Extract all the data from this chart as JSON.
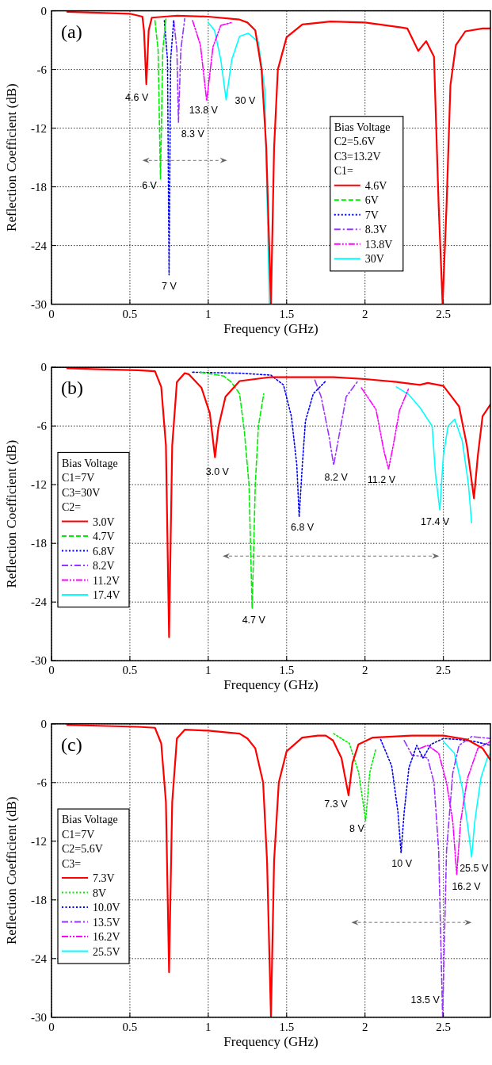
{
  "chart_data": [
    {
      "type": "line",
      "title": "(a)",
      "xlabel": "Frequency (GHz)",
      "ylabel": "Reflection Coefficient (dB)",
      "xlim": [
        0,
        2.8
      ],
      "xticks": [
        0,
        0.5,
        1,
        1.5,
        2,
        2.5
      ],
      "ylim": [
        -30,
        0
      ],
      "yticks": [
        -30,
        -24,
        -18,
        -12,
        -6,
        0
      ],
      "grid": true,
      "legend": "right",
      "legend_title": "Bias Voltage\nC2=5.6V\nC3=13.2V\nC1=",
      "series": [
        {
          "name": "4.6V",
          "color": "#ff0000",
          "line_style": "solid",
          "x": [
            0.1,
            0.3,
            0.5,
            0.58,
            0.59,
            0.605,
            0.62,
            0.64,
            0.8,
            1.0,
            1.2,
            1.25,
            1.3,
            1.34,
            1.37,
            1.4,
            1.42,
            1.444,
            1.5,
            1.6,
            1.78,
            2.0,
            2.14,
            2.27,
            2.34,
            2.39,
            2.44,
            2.47,
            2.495,
            2.52,
            2.545,
            2.58,
            2.64,
            2.75,
            2.8
          ],
          "values": [
            -0.1,
            -0.2,
            -0.3,
            -0.6,
            -2,
            -7.5,
            -2,
            -0.7,
            -0.5,
            -0.6,
            -0.9,
            -1.2,
            -2,
            -6,
            -14,
            -30,
            -14,
            -6,
            -2.7,
            -1.4,
            -1.1,
            -1.2,
            -1.5,
            -1.8,
            -4.1,
            -3.1,
            -4.7,
            -20,
            -30,
            -20,
            -7.6,
            -3.5,
            -2.1,
            -1.8,
            -1.8
          ]
        },
        {
          "name": "6V",
          "color": "#00ee00",
          "line_style": "dashed",
          "x": [
            0.66,
            0.68,
            0.695,
            0.71,
            0.73
          ],
          "values": [
            -1,
            -4,
            -17.2,
            -4,
            -0.8
          ]
        },
        {
          "name": "7V",
          "color": "#0000ff",
          "line_style": "dotted",
          "x": [
            0.72,
            0.74,
            0.75,
            0.76,
            0.78
          ],
          "values": [
            -1,
            -5,
            -27,
            -5,
            -0.9
          ]
        },
        {
          "name": "8.3V",
          "color": "#9933ff",
          "line_style": "dashdot",
          "x": [
            0.78,
            0.8,
            0.81,
            0.825,
            0.85
          ],
          "values": [
            -1,
            -4,
            -11.4,
            -4,
            -0.8
          ]
        },
        {
          "name": "13.8V",
          "color": "#ff00ff",
          "line_style": "dashdotdot",
          "x": [
            0.9,
            0.95,
            0.99,
            1.03,
            1.08,
            1.15
          ],
          "values": [
            -1,
            -3.5,
            -9.2,
            -3.7,
            -1.5,
            -1.2
          ]
        },
        {
          "name": "30V",
          "color": "#00ffff",
          "line_style": "solid",
          "x": [
            1.0,
            1.04,
            1.08,
            1.114,
            1.15,
            1.2,
            1.255,
            1.32,
            1.36,
            1.39
          ],
          "values": [
            -1.2,
            -2,
            -5,
            -9.1,
            -5,
            -2.6,
            -2.3,
            -3.2,
            -8,
            -30
          ]
        }
      ],
      "annotations": [
        {
          "text": "4.6 V",
          "x": 0.605,
          "y": -7.5
        },
        {
          "text": "6 V",
          "x": 0.695,
          "y": -17.2
        },
        {
          "text": "7 V",
          "x": 0.75,
          "y": -27
        },
        {
          "text": "8.3 V",
          "x": 0.81,
          "y": -11.4
        },
        {
          "text": "13.8 V",
          "x": 0.99,
          "y": -9.2
        },
        {
          "text": "30 V",
          "x": 1.114,
          "y": -9.1
        }
      ]
    },
    {
      "type": "line",
      "title": "(b)",
      "xlabel": "Frequency (GHz)",
      "ylabel": "Reflection Coefficient (dB)",
      "xlim": [
        0,
        2.8
      ],
      "xticks": [
        0,
        0.5,
        1,
        1.5,
        2,
        2.5
      ],
      "ylim": [
        -30,
        0
      ],
      "yticks": [
        -30,
        -24,
        -18,
        -12,
        -6,
        0
      ],
      "grid": true,
      "legend": "left",
      "legend_title": "Bias Voltage\nC1=7V\nC3=30V\nC2=",
      "series": [
        {
          "name": "3.0V",
          "color": "#ff0000",
          "line_style": "solid",
          "x": [
            0.1,
            0.3,
            0.55,
            0.66,
            0.7,
            0.73,
            0.75,
            0.77,
            0.8,
            0.85,
            0.875,
            0.957,
            1.01,
            1.043,
            1.065,
            1.11,
            1.2,
            1.4,
            1.6,
            1.8,
            2.0,
            2.2,
            2.35,
            2.4,
            2.5,
            2.6,
            2.65,
            2.695,
            2.72,
            2.75,
            2.8
          ],
          "values": [
            -0.1,
            -0.2,
            -0.3,
            -0.4,
            -2,
            -8,
            -27.6,
            -8,
            -1.5,
            -0.6,
            -0.7,
            -2.1,
            -4.7,
            -9.2,
            -6.1,
            -3,
            -1.4,
            -1.0,
            -1.0,
            -1.0,
            -1.2,
            -1.5,
            -1.8,
            -1.6,
            -1.9,
            -4,
            -8,
            -13.4,
            -9,
            -5,
            -3.8
          ]
        },
        {
          "name": "4.7V",
          "color": "#00ee00",
          "line_style": "dashed",
          "x": [
            0.95,
            1.1,
            1.146,
            1.2,
            1.23,
            1.26,
            1.28,
            1.3,
            1.32,
            1.354
          ],
          "values": [
            -0.5,
            -0.9,
            -1.5,
            -2.7,
            -6.5,
            -12,
            -24.7,
            -12,
            -6,
            -2.7
          ]
        },
        {
          "name": "6.8V",
          "color": "#0000ff",
          "line_style": "dotted",
          "x": [
            0.9,
            1.2,
            1.4,
            1.48,
            1.53,
            1.565,
            1.58,
            1.6,
            1.62,
            1.67,
            1.75
          ],
          "values": [
            -0.5,
            -0.6,
            -0.8,
            -1.8,
            -5,
            -10,
            -15.3,
            -10,
            -5.5,
            -2.7,
            -1.4
          ]
        },
        {
          "name": "8.2V",
          "color": "#9933ff",
          "line_style": "dashdot",
          "x": [
            1.68,
            1.72,
            1.77,
            1.8,
            1.84,
            1.88,
            1.95
          ],
          "values": [
            -1.3,
            -3,
            -7,
            -10,
            -6.5,
            -3,
            -1.5
          ]
        },
        {
          "name": "11.2V",
          "color": "#ff00ff",
          "line_style": "dashdotdot",
          "x": [
            1.977,
            2.07,
            2.12,
            2.15,
            2.18,
            2.22,
            2.28
          ],
          "values": [
            -2.1,
            -4.3,
            -8.5,
            -10.4,
            -8,
            -4.4,
            -2.1
          ]
        },
        {
          "name": "17.4V",
          "color": "#00ffff",
          "line_style": "solid",
          "x": [
            2.2,
            2.28,
            2.35,
            2.428,
            2.45,
            2.477,
            2.5,
            2.53,
            2.572,
            2.62,
            2.66,
            2.68
          ],
          "values": [
            -2.0,
            -2.8,
            -4.1,
            -6,
            -11,
            -14.6,
            -9,
            -6,
            -5.3,
            -7.5,
            -12,
            -15.9
          ]
        }
      ],
      "annotations": [
        {
          "text": "3.0 V",
          "x": 1.043,
          "y": -9.2
        },
        {
          "text": "4.7 V",
          "x": 1.28,
          "y": -24.7
        },
        {
          "text": "6.8 V",
          "x": 1.58,
          "y": -15.3
        },
        {
          "text": "8.2 V",
          "x": 1.8,
          "y": -10
        },
        {
          "text": "11.2 V",
          "x": 2.15,
          "y": -10.4
        },
        {
          "text": "17.4 V",
          "x": 2.477,
          "y": -14.6
        }
      ]
    },
    {
      "type": "line",
      "title": "(c)",
      "xlabel": "Frequency (GHz)",
      "ylabel": "Reflection Coefficient (dB)",
      "xlim": [
        0,
        2.8
      ],
      "xticks": [
        0,
        0.5,
        1,
        1.5,
        2,
        2.5
      ],
      "ylim": [
        -30,
        0
      ],
      "yticks": [
        -30,
        -24,
        -18,
        -12,
        -6,
        0
      ],
      "grid": true,
      "legend": "left",
      "legend_title": "Bias Voltage\nC1=7V\nC2=5.6V\nC3=",
      "series": [
        {
          "name": "7.3V",
          "color": "#ff0000",
          "line_style": "solid",
          "x": [
            0.1,
            0.3,
            0.55,
            0.66,
            0.7,
            0.73,
            0.75,
            0.77,
            0.8,
            0.85,
            1.0,
            1.2,
            1.25,
            1.3,
            1.35,
            1.375,
            1.4,
            1.42,
            1.45,
            1.5,
            1.6,
            1.7,
            1.75,
            1.796,
            1.85,
            1.895,
            1.92,
            1.958,
            2.05,
            2.3,
            2.5,
            2.65,
            2.75,
            2.8
          ],
          "values": [
            -0.1,
            -0.2,
            -0.3,
            -0.4,
            -2,
            -8,
            -25.4,
            -8,
            -1.5,
            -0.6,
            -0.7,
            -1.0,
            -1.5,
            -2.5,
            -6,
            -14,
            -30,
            -14,
            -6,
            -2.8,
            -1.4,
            -1.2,
            -1.2,
            -1.7,
            -3.5,
            -7.3,
            -4,
            -2.1,
            -1.4,
            -1.2,
            -1.2,
            -1.6,
            -2.5,
            -3.7
          ]
        },
        {
          "name": "8V",
          "color": "#00ee00",
          "line_style": "dotted",
          "x": [
            1.8,
            1.9,
            1.96,
            2.004,
            2.03,
            2.07
          ],
          "values": [
            -1.0,
            -2,
            -5,
            -9.9,
            -5,
            -2.5
          ]
        },
        {
          "name": "10.0V",
          "color": "#0000ff",
          "line_style": "dotted",
          "x": [
            2.1,
            2.17,
            2.21,
            2.23,
            2.25,
            2.28,
            2.33,
            2.37,
            2.42,
            2.5,
            2.6,
            2.7,
            2.8
          ],
          "values": [
            -1.6,
            -4.3,
            -9,
            -13.2,
            -9,
            -4.5,
            -2.2,
            -3.5,
            -2.1,
            -1.5,
            -1.6,
            -1.8,
            -2.2
          ]
        },
        {
          "name": "13.5V",
          "color": "#9933ff",
          "line_style": "dashdot",
          "x": [
            2.25,
            2.3,
            2.35,
            2.4,
            2.44,
            2.47,
            2.495,
            2.52,
            2.56,
            2.6,
            2.68,
            2.8
          ],
          "values": [
            -1.7,
            -3.2,
            -3.3,
            -3.5,
            -6,
            -13,
            -30,
            -13,
            -5,
            -2.2,
            -1.3,
            -1.5
          ]
        },
        {
          "name": "16.2V",
          "color": "#ff00ff",
          "line_style": "dashdotdot",
          "x": [
            2.35,
            2.4,
            2.47,
            2.52,
            2.56,
            2.585,
            2.61,
            2.653,
            2.72,
            2.8
          ],
          "values": [
            -2.5,
            -2.2,
            -3,
            -6,
            -10,
            -15.4,
            -10,
            -5.6,
            -2.5,
            -1.8
          ]
        },
        {
          "name": "25.5V",
          "color": "#00ffff",
          "line_style": "solid",
          "x": [
            2.5,
            2.57,
            2.62,
            2.66,
            2.68,
            2.7,
            2.74,
            2.78,
            2.8
          ],
          "values": [
            -1.8,
            -3,
            -6.5,
            -11,
            -13.6,
            -10,
            -5.5,
            -3.5,
            -3
          ]
        }
      ],
      "annotations": [
        {
          "text": "7.3 V",
          "x": 1.895,
          "y": -7.3
        },
        {
          "text": "8 V",
          "x": 2.004,
          "y": -9.9
        },
        {
          "text": "10 V",
          "x": 2.23,
          "y": -13.2
        },
        {
          "text": "25.5 V",
          "x": 2.68,
          "y": -13.6
        },
        {
          "text": "16.2 V",
          "x": 2.585,
          "y": -15.4
        },
        {
          "text": "13.5 V",
          "x": 2.495,
          "y": -30
        }
      ]
    }
  ]
}
